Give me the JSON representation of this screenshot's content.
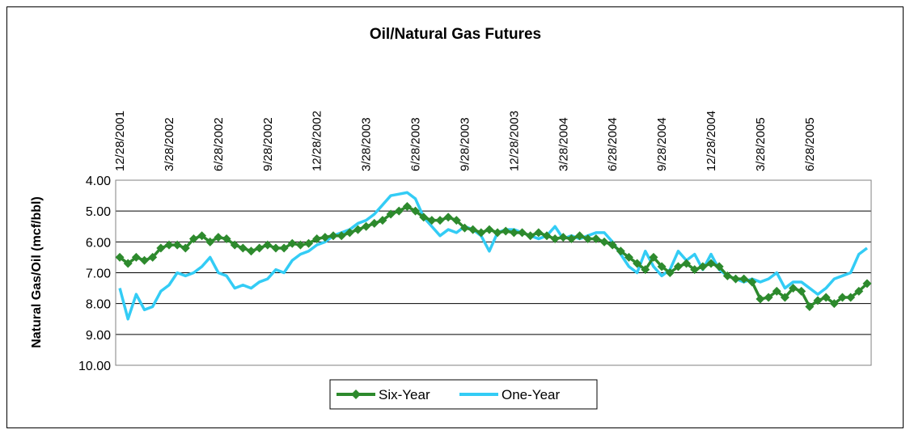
{
  "chart_data": {
    "type": "line",
    "title": "Oil/Natural Gas Futures",
    "y_label": "Natural Gas/Oil (mcf/bbl)",
    "categories": [
      "12/28/2001",
      null,
      null,
      null,
      null,
      null,
      "3/28/2002",
      null,
      null,
      null,
      null,
      null,
      "6/28/2002",
      null,
      null,
      null,
      null,
      null,
      "9/28/2002",
      null,
      null,
      null,
      null,
      null,
      "12/28/2002",
      null,
      null,
      null,
      null,
      null,
      "3/28/2003",
      null,
      null,
      null,
      null,
      null,
      "6/28/2003",
      null,
      null,
      null,
      null,
      null,
      "9/28/2003",
      null,
      null,
      null,
      null,
      null,
      "12/28/2003",
      null,
      null,
      null,
      null,
      null,
      "3/28/2004",
      null,
      null,
      null,
      null,
      null,
      "6/28/2004",
      null,
      null,
      null,
      null,
      null,
      "9/28/2004",
      null,
      null,
      null,
      null,
      null,
      "12/28/2004",
      null,
      null,
      null,
      null,
      null,
      "3/28/2005",
      null,
      null,
      null,
      null,
      null,
      "6/28/2005",
      null,
      null,
      null,
      null,
      null,
      null,
      null
    ],
    "series": [
      {
        "name": "Six-Year",
        "color": "#2d8a2d",
        "marker": "diamond",
        "values": [
          6.5,
          6.7,
          6.5,
          6.6,
          6.5,
          6.2,
          6.1,
          6.1,
          6.2,
          5.9,
          5.8,
          6.0,
          5.85,
          5.9,
          6.1,
          6.2,
          6.3,
          6.2,
          6.1,
          6.2,
          6.2,
          6.05,
          6.1,
          6.05,
          5.9,
          5.85,
          5.8,
          5.8,
          5.7,
          5.6,
          5.5,
          5.4,
          5.3,
          5.1,
          5.0,
          4.85,
          5.0,
          5.2,
          5.3,
          5.3,
          5.2,
          5.3,
          5.55,
          5.6,
          5.7,
          5.6,
          5.7,
          5.65,
          5.7,
          5.7,
          5.8,
          5.7,
          5.8,
          5.9,
          5.85,
          5.9,
          5.8,
          5.9,
          5.9,
          6.0,
          6.1,
          6.3,
          6.5,
          6.7,
          6.9,
          6.5,
          6.8,
          7.0,
          6.8,
          6.7,
          6.9,
          6.8,
          6.7,
          6.8,
          7.1,
          7.2,
          7.2,
          7.3,
          7.85,
          7.8,
          7.6,
          7.8,
          7.5,
          7.6,
          8.1,
          7.9,
          7.8,
          8.0,
          7.8,
          7.8,
          7.6,
          7.35
        ]
      },
      {
        "name": "One-Year",
        "color": "#33ccf5",
        "marker": "none",
        "values": [
          7.5,
          8.5,
          7.7,
          8.2,
          8.1,
          7.6,
          7.4,
          7.0,
          7.1,
          7.0,
          6.8,
          6.5,
          7.0,
          7.1,
          7.5,
          7.4,
          7.5,
          7.3,
          7.2,
          6.9,
          7.0,
          6.6,
          6.4,
          6.3,
          6.1,
          6.0,
          5.8,
          5.7,
          5.6,
          5.4,
          5.3,
          5.1,
          4.8,
          4.5,
          4.45,
          4.4,
          4.6,
          5.2,
          5.5,
          5.8,
          5.6,
          5.7,
          5.5,
          5.6,
          5.8,
          6.3,
          5.7,
          5.6,
          5.6,
          5.7,
          5.8,
          5.9,
          5.8,
          5.5,
          5.9,
          5.8,
          5.9,
          5.8,
          5.7,
          5.7,
          6.0,
          6.4,
          6.8,
          7.0,
          6.3,
          6.8,
          7.1,
          6.9,
          6.3,
          6.6,
          6.4,
          6.9,
          6.4,
          6.9,
          7.1,
          7.2,
          7.3,
          7.2,
          7.3,
          7.2,
          7.0,
          7.5,
          7.3,
          7.3,
          7.5,
          7.7,
          7.5,
          7.2,
          7.1,
          7.0,
          6.4,
          6.2
        ]
      }
    ],
    "ylim": [
      4,
      10
    ],
    "y_inverted": true,
    "yticks": [
      {
        "value": 4,
        "label": "4.00"
      },
      {
        "value": 5,
        "label": "5.00"
      },
      {
        "value": 6,
        "label": "6.00"
      },
      {
        "value": 7,
        "label": "7.00"
      },
      {
        "value": 8,
        "label": "8.00"
      },
      {
        "value": 9,
        "label": "9.00"
      },
      {
        "value": 10,
        "label": "10.00"
      }
    ],
    "grid": true,
    "legend": "bottom"
  }
}
